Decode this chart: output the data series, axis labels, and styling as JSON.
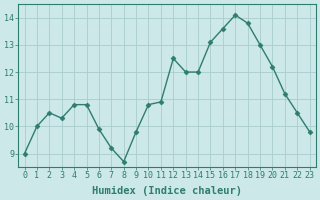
{
  "x": [
    0,
    1,
    2,
    3,
    4,
    5,
    6,
    7,
    8,
    9,
    10,
    11,
    12,
    13,
    14,
    15,
    16,
    17,
    18,
    19,
    20,
    21,
    22,
    23
  ],
  "y": [
    9.0,
    10.0,
    10.5,
    10.3,
    10.8,
    10.8,
    9.9,
    9.2,
    8.7,
    9.8,
    10.8,
    10.9,
    12.5,
    12.0,
    12.0,
    13.1,
    13.6,
    14.1,
    13.8,
    13.0,
    12.2,
    11.2,
    10.5,
    9.8
  ],
  "line_color": "#2e7d6e",
  "marker": "D",
  "marker_size": 2.5,
  "bg_color": "#cce8e8",
  "grid_color": "#aacccc",
  "xlabel": "Humidex (Indice chaleur)",
  "ylim": [
    8.5,
    14.5
  ],
  "xlim": [
    -0.5,
    23.5
  ],
  "yticks": [
    9,
    10,
    11,
    12,
    13,
    14
  ],
  "xticks": [
    0,
    1,
    2,
    3,
    4,
    5,
    6,
    7,
    8,
    9,
    10,
    11,
    12,
    13,
    14,
    15,
    16,
    17,
    18,
    19,
    20,
    21,
    22,
    23
  ],
  "tick_fontsize": 6.0,
  "label_fontsize": 7.5
}
